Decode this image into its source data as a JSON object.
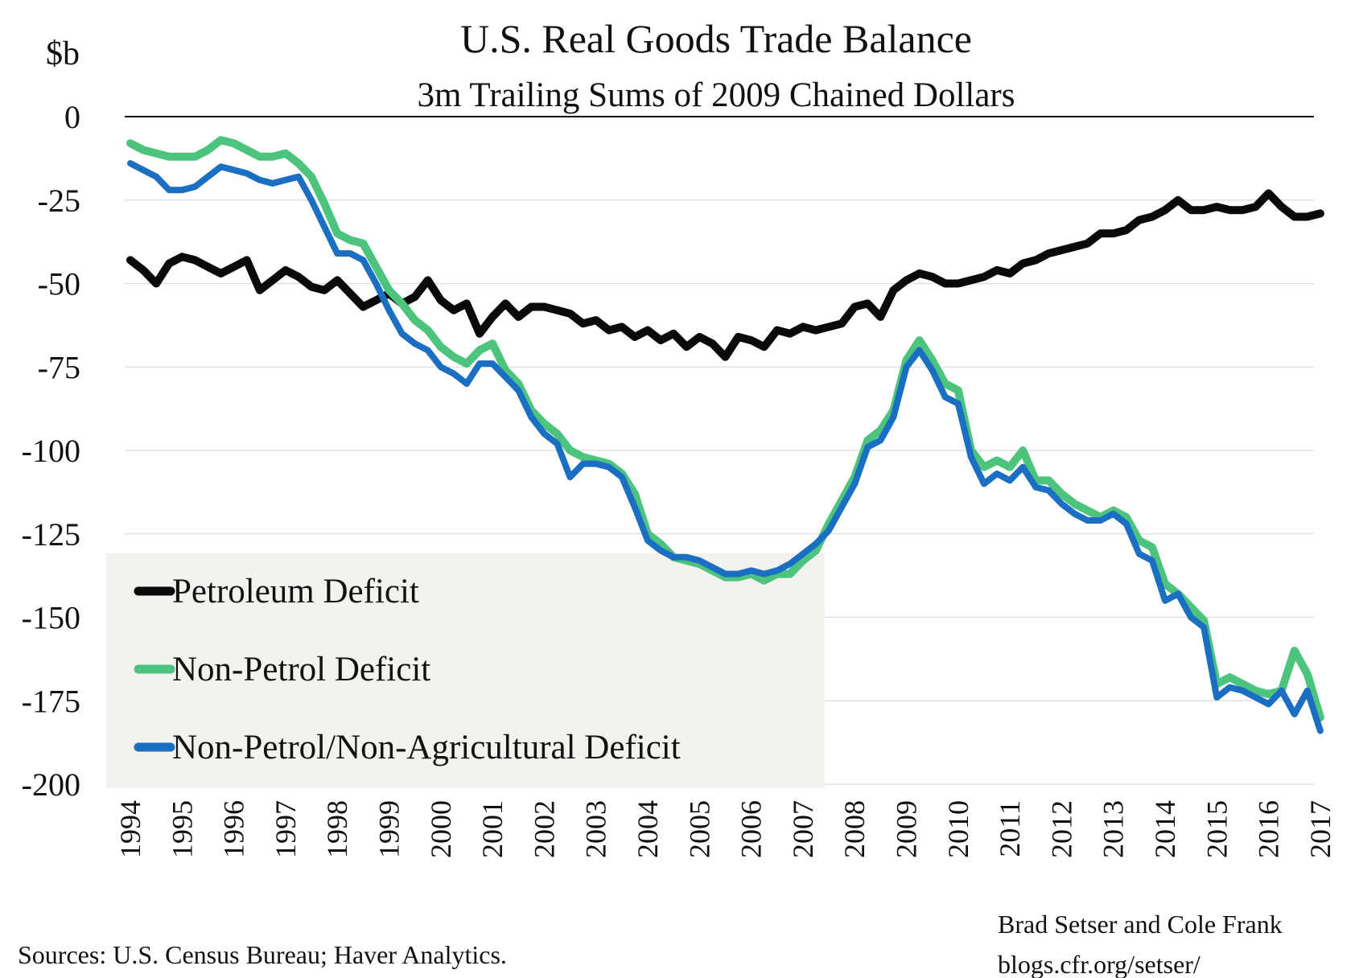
{
  "chart_data": {
    "type": "line",
    "title": "U.S. Real Goods Trade Balance",
    "subtitle": "3m Trailing Sums of 2009 Chained Dollars",
    "ylabel": "$b",
    "ylim": [
      -200,
      0
    ],
    "y_ticks": [
      0,
      -25,
      -50,
      -75,
      -100,
      -125,
      -150,
      -175,
      -200
    ],
    "x_ticks": [
      "1994",
      "1995",
      "1996",
      "1997",
      "1998",
      "1999",
      "2000",
      "2001",
      "2002",
      "2003",
      "2004",
      "2005",
      "2006",
      "2007",
      "2008",
      "2009",
      "2010",
      "2011",
      "2012",
      "2013",
      "2014",
      "2015",
      "2016",
      "2017"
    ],
    "xlim": [
      1994,
      2017
    ],
    "grid": "horizontal",
    "legend_position": "bottom-left",
    "series": [
      {
        "name": "Petroleum Deficit",
        "color": "#0a0a0a",
        "points": [
          [
            1994.0,
            -43
          ],
          [
            1994.25,
            -46
          ],
          [
            1994.5,
            -50
          ],
          [
            1994.75,
            -44
          ],
          [
            1995.0,
            -42
          ],
          [
            1995.25,
            -43
          ],
          [
            1995.5,
            -45
          ],
          [
            1995.75,
            -47
          ],
          [
            1996.0,
            -45
          ],
          [
            1996.25,
            -43
          ],
          [
            1996.5,
            -52
          ],
          [
            1996.75,
            -49
          ],
          [
            1997.0,
            -46
          ],
          [
            1997.25,
            -48
          ],
          [
            1997.5,
            -51
          ],
          [
            1997.75,
            -52
          ],
          [
            1998.0,
            -49
          ],
          [
            1998.25,
            -53
          ],
          [
            1998.5,
            -57
          ],
          [
            1998.75,
            -55
          ],
          [
            1999.0,
            -53
          ],
          [
            1999.25,
            -56
          ],
          [
            1999.5,
            -54
          ],
          [
            1999.75,
            -49
          ],
          [
            2000.0,
            -55
          ],
          [
            2000.25,
            -58
          ],
          [
            2000.5,
            -56
          ],
          [
            2000.75,
            -65
          ],
          [
            2001.0,
            -60
          ],
          [
            2001.25,
            -56
          ],
          [
            2001.5,
            -60
          ],
          [
            2001.75,
            -57
          ],
          [
            2002.0,
            -57
          ],
          [
            2002.25,
            -58
          ],
          [
            2002.5,
            -59
          ],
          [
            2002.75,
            -62
          ],
          [
            2003.0,
            -61
          ],
          [
            2003.25,
            -64
          ],
          [
            2003.5,
            -63
          ],
          [
            2003.75,
            -66
          ],
          [
            2004.0,
            -64
          ],
          [
            2004.25,
            -67
          ],
          [
            2004.5,
            -65
          ],
          [
            2004.75,
            -69
          ],
          [
            2005.0,
            -66
          ],
          [
            2005.25,
            -68
          ],
          [
            2005.5,
            -72
          ],
          [
            2005.75,
            -66
          ],
          [
            2006.0,
            -67
          ],
          [
            2006.25,
            -69
          ],
          [
            2006.5,
            -64
          ],
          [
            2006.75,
            -65
          ],
          [
            2007.0,
            -63
          ],
          [
            2007.25,
            -64
          ],
          [
            2007.5,
            -63
          ],
          [
            2007.75,
            -62
          ],
          [
            2008.0,
            -57
          ],
          [
            2008.25,
            -56
          ],
          [
            2008.5,
            -60
          ],
          [
            2008.75,
            -52
          ],
          [
            2009.0,
            -49
          ],
          [
            2009.25,
            -47
          ],
          [
            2009.5,
            -48
          ],
          [
            2009.75,
            -50
          ],
          [
            2010.0,
            -50
          ],
          [
            2010.25,
            -49
          ],
          [
            2010.5,
            -48
          ],
          [
            2010.75,
            -46
          ],
          [
            2011.0,
            -47
          ],
          [
            2011.25,
            -44
          ],
          [
            2011.5,
            -43
          ],
          [
            2011.75,
            -41
          ],
          [
            2012.0,
            -40
          ],
          [
            2012.25,
            -39
          ],
          [
            2012.5,
            -38
          ],
          [
            2012.75,
            -35
          ],
          [
            2013.0,
            -35
          ],
          [
            2013.25,
            -34
          ],
          [
            2013.5,
            -31
          ],
          [
            2013.75,
            -30
          ],
          [
            2014.0,
            -28
          ],
          [
            2014.25,
            -25
          ],
          [
            2014.5,
            -28
          ],
          [
            2014.75,
            -28
          ],
          [
            2015.0,
            -27
          ],
          [
            2015.25,
            -28
          ],
          [
            2015.5,
            -28
          ],
          [
            2015.75,
            -27
          ],
          [
            2016.0,
            -23
          ],
          [
            2016.25,
            -27
          ],
          [
            2016.5,
            -30
          ],
          [
            2016.75,
            -30
          ],
          [
            2017.0,
            -29
          ]
        ]
      },
      {
        "name": "Non-Petrol Deficit",
        "color": "#4cc47e",
        "points": [
          [
            1994.0,
            -8
          ],
          [
            1994.25,
            -10
          ],
          [
            1994.5,
            -11
          ],
          [
            1994.75,
            -12
          ],
          [
            1995.0,
            -12
          ],
          [
            1995.25,
            -12
          ],
          [
            1995.5,
            -10
          ],
          [
            1995.75,
            -7
          ],
          [
            1996.0,
            -8
          ],
          [
            1996.25,
            -10
          ],
          [
            1996.5,
            -12
          ],
          [
            1996.75,
            -12
          ],
          [
            1997.0,
            -11
          ],
          [
            1997.25,
            -14
          ],
          [
            1997.5,
            -18
          ],
          [
            1997.75,
            -26
          ],
          [
            1998.0,
            -35
          ],
          [
            1998.25,
            -37
          ],
          [
            1998.5,
            -38
          ],
          [
            1998.75,
            -45
          ],
          [
            1999.0,
            -52
          ],
          [
            1999.25,
            -56
          ],
          [
            1999.5,
            -61
          ],
          [
            1999.75,
            -64
          ],
          [
            2000.0,
            -69
          ],
          [
            2000.25,
            -72
          ],
          [
            2000.5,
            -74
          ],
          [
            2000.75,
            -70
          ],
          [
            2001.0,
            -68
          ],
          [
            2001.25,
            -76
          ],
          [
            2001.5,
            -80
          ],
          [
            2001.75,
            -88
          ],
          [
            2002.0,
            -92
          ],
          [
            2002.25,
            -95
          ],
          [
            2002.5,
            -100
          ],
          [
            2002.75,
            -102
          ],
          [
            2003.0,
            -103
          ],
          [
            2003.25,
            -104
          ],
          [
            2003.5,
            -107
          ],
          [
            2003.75,
            -113
          ],
          [
            2004.0,
            -125
          ],
          [
            2004.25,
            -128
          ],
          [
            2004.5,
            -132
          ],
          [
            2004.75,
            -133
          ],
          [
            2005.0,
            -134
          ],
          [
            2005.25,
            -136
          ],
          [
            2005.5,
            -138
          ],
          [
            2005.75,
            -138
          ],
          [
            2006.0,
            -137
          ],
          [
            2006.25,
            -139
          ],
          [
            2006.5,
            -137
          ],
          [
            2006.75,
            -137
          ],
          [
            2007.0,
            -133
          ],
          [
            2007.25,
            -130
          ],
          [
            2007.5,
            -122
          ],
          [
            2007.75,
            -115
          ],
          [
            2008.0,
            -108
          ],
          [
            2008.25,
            -97
          ],
          [
            2008.5,
            -94
          ],
          [
            2008.75,
            -88
          ],
          [
            2009.0,
            -73
          ],
          [
            2009.25,
            -67
          ],
          [
            2009.5,
            -73
          ],
          [
            2009.75,
            -80
          ],
          [
            2010.0,
            -82
          ],
          [
            2010.25,
            -100
          ],
          [
            2010.5,
            -105
          ],
          [
            2010.75,
            -103
          ],
          [
            2011.0,
            -105
          ],
          [
            2011.25,
            -100
          ],
          [
            2011.5,
            -109
          ],
          [
            2011.75,
            -109
          ],
          [
            2012.0,
            -113
          ],
          [
            2012.25,
            -116
          ],
          [
            2012.5,
            -118
          ],
          [
            2012.75,
            -120
          ],
          [
            2013.0,
            -118
          ],
          [
            2013.25,
            -120
          ],
          [
            2013.5,
            -127
          ],
          [
            2013.75,
            -129
          ],
          [
            2014.0,
            -140
          ],
          [
            2014.25,
            -143
          ],
          [
            2014.5,
            -147
          ],
          [
            2014.75,
            -151
          ],
          [
            2015.0,
            -170
          ],
          [
            2015.25,
            -168
          ],
          [
            2015.5,
            -170
          ],
          [
            2015.75,
            -172
          ],
          [
            2016.0,
            -173
          ],
          [
            2016.25,
            -172
          ],
          [
            2016.5,
            -160
          ],
          [
            2016.75,
            -167
          ],
          [
            2017.0,
            -180
          ]
        ]
      },
      {
        "name": "Non-Petrol/Non-Agricultural Deficit",
        "color": "#1a6fc2",
        "points": [
          [
            1994.0,
            -14
          ],
          [
            1994.25,
            -16
          ],
          [
            1994.5,
            -18
          ],
          [
            1994.75,
            -22
          ],
          [
            1995.0,
            -22
          ],
          [
            1995.25,
            -21
          ],
          [
            1995.5,
            -18
          ],
          [
            1995.75,
            -15
          ],
          [
            1996.0,
            -16
          ],
          [
            1996.25,
            -17
          ],
          [
            1996.5,
            -19
          ],
          [
            1996.75,
            -20
          ],
          [
            1997.0,
            -19
          ],
          [
            1997.25,
            -18
          ],
          [
            1997.5,
            -25
          ],
          [
            1997.75,
            -33
          ],
          [
            1998.0,
            -41
          ],
          [
            1998.25,
            -41
          ],
          [
            1998.5,
            -43
          ],
          [
            1998.75,
            -50
          ],
          [
            1999.0,
            -58
          ],
          [
            1999.25,
            -65
          ],
          [
            1999.5,
            -68
          ],
          [
            1999.75,
            -70
          ],
          [
            2000.0,
            -75
          ],
          [
            2000.25,
            -77
          ],
          [
            2000.5,
            -80
          ],
          [
            2000.75,
            -74
          ],
          [
            2001.0,
            -74
          ],
          [
            2001.25,
            -78
          ],
          [
            2001.5,
            -82
          ],
          [
            2001.75,
            -90
          ],
          [
            2002.0,
            -95
          ],
          [
            2002.25,
            -98
          ],
          [
            2002.5,
            -108
          ],
          [
            2002.75,
            -104
          ],
          [
            2003.0,
            -104
          ],
          [
            2003.25,
            -105
          ],
          [
            2003.5,
            -108
          ],
          [
            2003.75,
            -117
          ],
          [
            2004.0,
            -127
          ],
          [
            2004.25,
            -130
          ],
          [
            2004.5,
            -132
          ],
          [
            2004.75,
            -132
          ],
          [
            2005.0,
            -133
          ],
          [
            2005.25,
            -135
          ],
          [
            2005.5,
            -137
          ],
          [
            2005.75,
            -137
          ],
          [
            2006.0,
            -136
          ],
          [
            2006.25,
            -137
          ],
          [
            2006.5,
            -136
          ],
          [
            2006.75,
            -134
          ],
          [
            2007.0,
            -131
          ],
          [
            2007.25,
            -128
          ],
          [
            2007.5,
            -124
          ],
          [
            2007.75,
            -117
          ],
          [
            2008.0,
            -110
          ],
          [
            2008.25,
            -99
          ],
          [
            2008.5,
            -97
          ],
          [
            2008.75,
            -90
          ],
          [
            2009.0,
            -75
          ],
          [
            2009.25,
            -70
          ],
          [
            2009.5,
            -76
          ],
          [
            2009.75,
            -84
          ],
          [
            2010.0,
            -86
          ],
          [
            2010.25,
            -102
          ],
          [
            2010.5,
            -110
          ],
          [
            2010.75,
            -107
          ],
          [
            2011.0,
            -109
          ],
          [
            2011.25,
            -105
          ],
          [
            2011.5,
            -111
          ],
          [
            2011.75,
            -112
          ],
          [
            2012.0,
            -116
          ],
          [
            2012.25,
            -119
          ],
          [
            2012.5,
            -121
          ],
          [
            2012.75,
            -121
          ],
          [
            2013.0,
            -119
          ],
          [
            2013.25,
            -122
          ],
          [
            2013.5,
            -131
          ],
          [
            2013.75,
            -133
          ],
          [
            2014.0,
            -145
          ],
          [
            2014.25,
            -143
          ],
          [
            2014.5,
            -150
          ],
          [
            2014.75,
            -153
          ],
          [
            2015.0,
            -174
          ],
          [
            2015.25,
            -171
          ],
          [
            2015.5,
            -172
          ],
          [
            2015.75,
            -174
          ],
          [
            2016.0,
            -176
          ],
          [
            2016.25,
            -172
          ],
          [
            2016.5,
            -179
          ],
          [
            2016.75,
            -172
          ],
          [
            2017.0,
            -184
          ]
        ]
      }
    ]
  },
  "legend": {
    "items": [
      "Petroleum Deficit",
      "Non-Petrol Deficit",
      "Non-Petrol/Non-Agricultural Deficit"
    ]
  },
  "footer": {
    "sources": "Sources: U.S. Census Bureau; Haver Analytics.",
    "authors": "Brad Setser and Cole Frank",
    "url": "blogs.cfr.org/setser/"
  }
}
